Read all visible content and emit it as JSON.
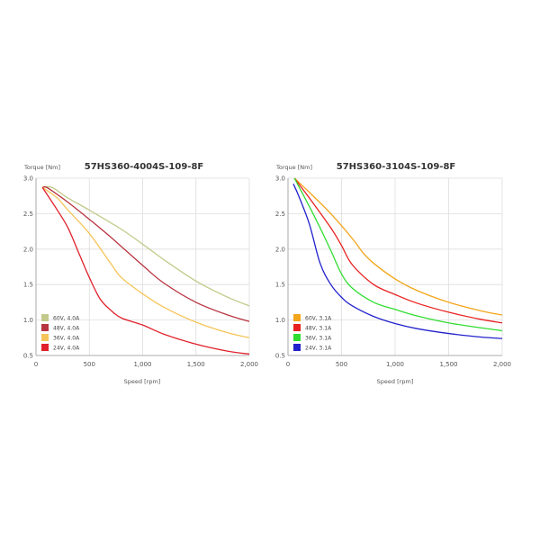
{
  "chart_data": [
    {
      "type": "line",
      "title": "57HS360-4004S-109-8F",
      "xlabel": "Speed [rpm]",
      "ylabel": "Torque [Nm]",
      "xlim": [
        0,
        2000
      ],
      "ylim": [
        0.5,
        3.0
      ],
      "xticks": [
        "0",
        "500",
        "1,000",
        "1,500",
        "2,000"
      ],
      "yticks": [
        "0.5",
        "1.0",
        "1.5",
        "2.0",
        "2.5",
        "3.0"
      ],
      "grid": true,
      "legend": "bottom-left",
      "series": [
        {
          "name": "60V, 4.0A",
          "color": "#c3c98a",
          "x": [
            60,
            150,
            300,
            500,
            800,
            1000,
            1200,
            1500,
            1800,
            2000
          ],
          "y": [
            2.87,
            2.87,
            2.72,
            2.55,
            2.28,
            2.07,
            1.85,
            1.55,
            1.32,
            1.2
          ]
        },
        {
          "name": "48V, 4.0A",
          "color": "#b8343f",
          "x": [
            60,
            100,
            200,
            300,
            500,
            700,
            1000,
            1200,
            1500,
            1800,
            2000
          ],
          "y": [
            2.87,
            2.87,
            2.77,
            2.66,
            2.42,
            2.17,
            1.77,
            1.52,
            1.25,
            1.07,
            0.98
          ]
        },
        {
          "name": "36V, 4.0A",
          "color": "#f5c55a",
          "x": [
            60,
            200,
            300,
            500,
            700,
            800,
            1000,
            1200,
            1500,
            1800,
            2000
          ],
          "y": [
            2.87,
            2.72,
            2.55,
            2.22,
            1.8,
            1.6,
            1.37,
            1.18,
            0.97,
            0.82,
            0.75
          ]
        },
        {
          "name": "24V, 4.0A",
          "color": "#e0202a",
          "x": [
            60,
            200,
            300,
            400,
            500,
            600,
            700,
            800,
            1000,
            1200,
            1500,
            1800,
            2000
          ],
          "y": [
            2.87,
            2.55,
            2.3,
            1.95,
            1.6,
            1.3,
            1.14,
            1.03,
            0.93,
            0.8,
            0.66,
            0.56,
            0.52
          ]
        }
      ]
    },
    {
      "type": "line",
      "title": "57HS360-3104S-109-8F",
      "xlabel": "Speed [rpm]",
      "ylabel": "Torque [Nm]",
      "xlim": [
        0,
        2000
      ],
      "ylim": [
        0.5,
        3.0
      ],
      "xticks": [
        "0",
        "500",
        "1,000",
        "1,500",
        "2,000"
      ],
      "yticks": [
        "0.5",
        "1.0",
        "1.5",
        "2.0",
        "2.5",
        "3.0"
      ],
      "grid": true,
      "legend": "bottom-left",
      "series": [
        {
          "name": "60V, 3.1A",
          "color": "#f2a51a",
          "x": [
            60,
            200,
            400,
            600,
            700,
            800,
            1000,
            1200,
            1500,
            1800,
            2000
          ],
          "y": [
            3.0,
            2.8,
            2.5,
            2.15,
            1.95,
            1.8,
            1.58,
            1.42,
            1.25,
            1.13,
            1.07
          ]
        },
        {
          "name": "48V, 3.1A",
          "color": "#e82020",
          "x": [
            60,
            200,
            400,
            500,
            600,
            800,
            1000,
            1200,
            1500,
            1800,
            2000
          ],
          "y": [
            3.0,
            2.72,
            2.3,
            2.05,
            1.78,
            1.5,
            1.36,
            1.24,
            1.11,
            1.01,
            0.96
          ]
        },
        {
          "name": "36V, 3.1A",
          "color": "#30dd30",
          "x": [
            60,
            200,
            300,
            400,
            500,
            600,
            800,
            1000,
            1200,
            1500,
            1800,
            2000
          ],
          "y": [
            3.0,
            2.6,
            2.3,
            1.98,
            1.65,
            1.45,
            1.25,
            1.15,
            1.06,
            0.96,
            0.89,
            0.85
          ]
        },
        {
          "name": "24V, 3.1A",
          "color": "#2222cc",
          "x": [
            50,
            100,
            200,
            300,
            400,
            500,
            600,
            800,
            1000,
            1200,
            1500,
            1800,
            2000
          ],
          "y": [
            2.92,
            2.75,
            2.35,
            1.8,
            1.5,
            1.32,
            1.2,
            1.05,
            0.95,
            0.88,
            0.81,
            0.76,
            0.74
          ]
        }
      ]
    }
  ]
}
